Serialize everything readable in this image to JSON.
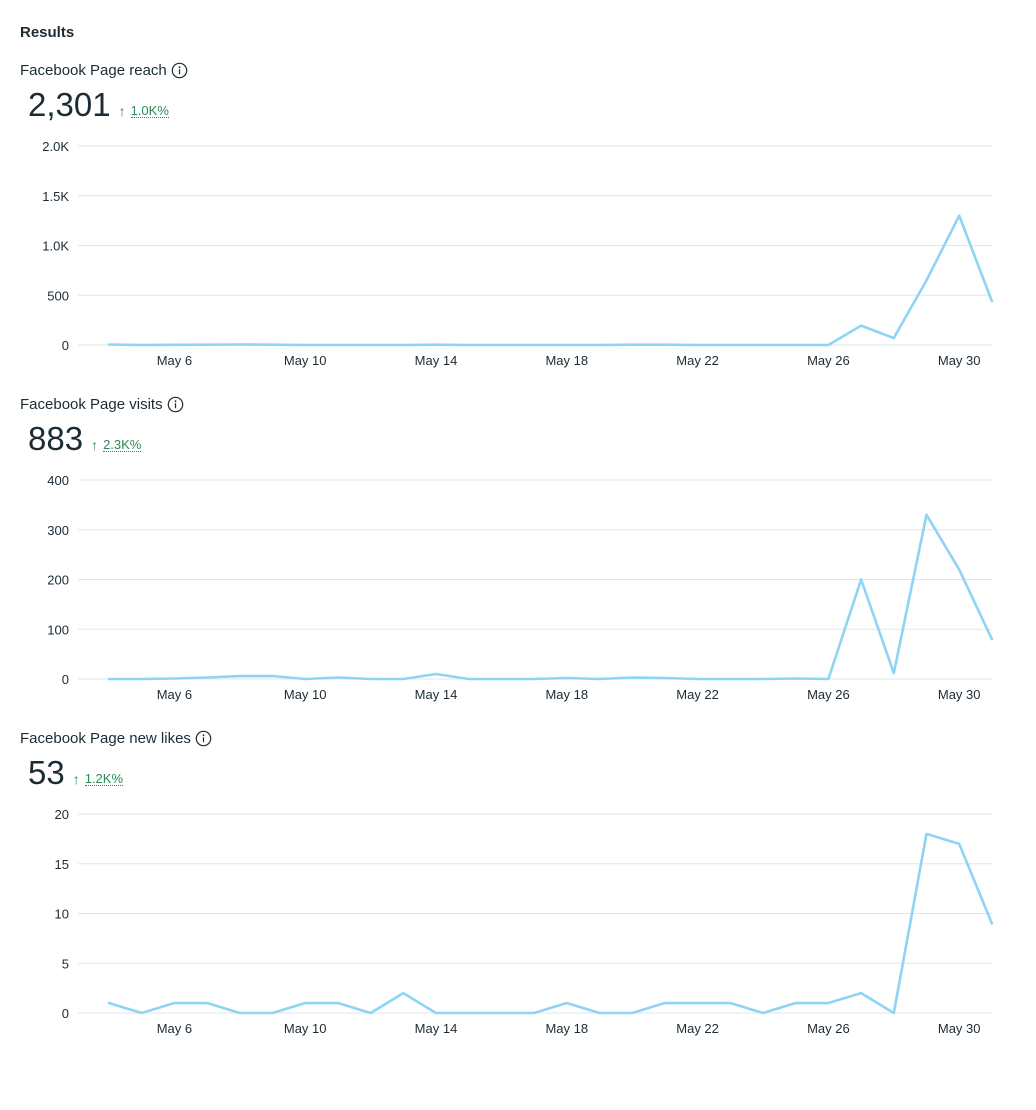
{
  "heading": "Results",
  "colors": {
    "line": "#8dd4f5",
    "grid": "#e3e6e8",
    "positive": "#2d8a57"
  },
  "icons": {
    "info": "info-circle-icon",
    "trend": "arrow-up-icon"
  },
  "metrics": [
    {
      "title": "Facebook Page reach",
      "value": "2,301",
      "change": "1.0K%"
    },
    {
      "title": "Facebook Page visits",
      "value": "883",
      "change": "2.3K%"
    },
    {
      "title": "Facebook Page new likes",
      "value": "53",
      "change": "1.2K%"
    }
  ],
  "chart_data": [
    {
      "type": "line",
      "x": [
        "May 4",
        "May 5",
        "May 6",
        "May 7",
        "May 8",
        "May 9",
        "May 10",
        "May 11",
        "May 12",
        "May 13",
        "May 14",
        "May 15",
        "May 16",
        "May 17",
        "May 18",
        "May 19",
        "May 20",
        "May 21",
        "May 22",
        "May 23",
        "May 24",
        "May 25",
        "May 26",
        "May 27",
        "May 28",
        "May 29",
        "May 30",
        "May 31"
      ],
      "xticks": [
        "May 6",
        "May 10",
        "May 14",
        "May 18",
        "May 22",
        "May 26",
        "May 30"
      ],
      "yticks": [
        "0",
        "500",
        "1.0K",
        "1.5K",
        "2.0K"
      ],
      "ylim": [
        0,
        2000
      ],
      "series": [
        {
          "values": [
            5,
            0,
            2,
            3,
            5,
            3,
            0,
            0,
            0,
            0,
            3,
            0,
            0,
            0,
            0,
            0,
            3,
            3,
            0,
            0,
            0,
            0,
            0,
            195,
            70,
            650,
            1300,
            440
          ]
        }
      ]
    },
    {
      "type": "line",
      "x": [
        "May 4",
        "May 5",
        "May 6",
        "May 7",
        "May 8",
        "May 9",
        "May 10",
        "May 11",
        "May 12",
        "May 13",
        "May 14",
        "May 15",
        "May 16",
        "May 17",
        "May 18",
        "May 19",
        "May 20",
        "May 21",
        "May 22",
        "May 23",
        "May 24",
        "May 25",
        "May 26",
        "May 27",
        "May 28",
        "May 29",
        "May 30",
        "May 31"
      ],
      "xticks": [
        "May 6",
        "May 10",
        "May 14",
        "May 18",
        "May 22",
        "May 26",
        "May 30"
      ],
      "yticks": [
        "0",
        "100",
        "200",
        "300",
        "400"
      ],
      "ylim": [
        0,
        400
      ],
      "series": [
        {
          "values": [
            0,
            0,
            1,
            3,
            6,
            6,
            0,
            3,
            0,
            0,
            10,
            0,
            0,
            0,
            2,
            0,
            3,
            2,
            0,
            0,
            0,
            1,
            0,
            200,
            12,
            330,
            220,
            80
          ]
        }
      ]
    },
    {
      "type": "line",
      "x": [
        "May 4",
        "May 5",
        "May 6",
        "May 7",
        "May 8",
        "May 9",
        "May 10",
        "May 11",
        "May 12",
        "May 13",
        "May 14",
        "May 15",
        "May 16",
        "May 17",
        "May 18",
        "May 19",
        "May 20",
        "May 21",
        "May 22",
        "May 23",
        "May 24",
        "May 25",
        "May 26",
        "May 27",
        "May 28",
        "May 29",
        "May 30",
        "May 31"
      ],
      "xticks": [
        "May 6",
        "May 10",
        "May 14",
        "May 18",
        "May 22",
        "May 26",
        "May 30"
      ],
      "yticks": [
        "0",
        "5",
        "10",
        "15",
        "20"
      ],
      "ylim": [
        0,
        20
      ],
      "series": [
        {
          "values": [
            1,
            0,
            1,
            1,
            0,
            0,
            1,
            1,
            0,
            2,
            0,
            0,
            0,
            0,
            1,
            0,
            0,
            1,
            1,
            1,
            0,
            1,
            1,
            2,
            0,
            18,
            17,
            9
          ]
        }
      ]
    }
  ]
}
